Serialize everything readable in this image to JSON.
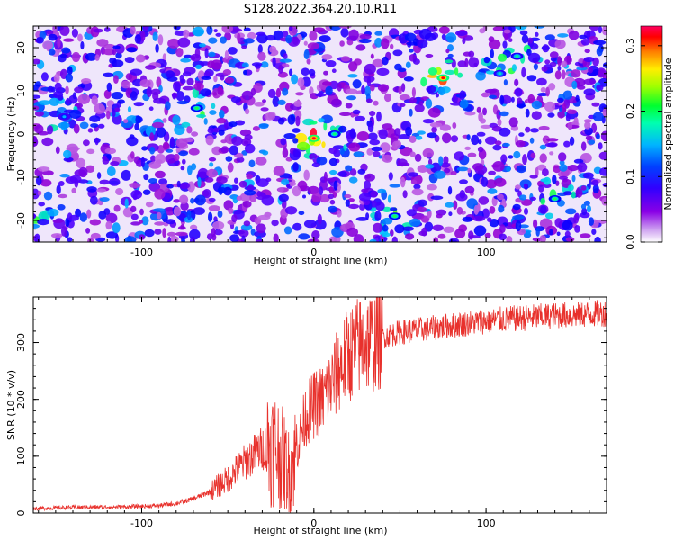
{
  "page": {
    "title": "S128.2022.364.20.10.R11"
  },
  "chart_data": [
    {
      "type": "heatmap",
      "title": "S128.2022.364.20.10.R11",
      "xlabel": "Height of straight line (km)",
      "ylabel": "Frequency (Hz)",
      "xlim": [
        -163,
        170
      ],
      "ylim": [
        -25,
        25
      ],
      "x_ticks": [
        -100,
        0,
        100
      ],
      "x_tick_labels": [
        "-100",
        "0",
        "100"
      ],
      "y_ticks": [
        -20,
        -10,
        0,
        10,
        20
      ],
      "y_tick_labels": [
        "-20",
        "-10",
        "0",
        "10",
        "20"
      ],
      "colorbar": {
        "label": "Normalized spectral amplitude",
        "range": [
          0.0,
          0.33
        ],
        "ticks": [
          0.0,
          0.1,
          0.2,
          0.3
        ],
        "tick_labels": [
          "0.0",
          "0.1",
          "0.2",
          "0.3"
        ],
        "colormap": [
          "#ffffff",
          "#9400d3",
          "#4b00ff",
          "#0000ff",
          "#00c0ff",
          "#00ff80",
          "#40ff00",
          "#ffff00",
          "#ff8000",
          "#ff0000",
          "#ff0080"
        ]
      },
      "hotspots": [
        {
          "x": 0,
          "y": -1,
          "value": 0.31
        },
        {
          "x": 75,
          "y": 13,
          "value": 0.3
        },
        {
          "x": -68,
          "y": 6,
          "value": 0.18
        },
        {
          "x": 12,
          "y": 0,
          "value": 0.17
        },
        {
          "x": 140,
          "y": -15,
          "value": 0.18
        },
        {
          "x": 108,
          "y": 14,
          "value": 0.15
        },
        {
          "x": 118,
          "y": 18,
          "value": 0.16
        },
        {
          "x": 47,
          "y": -19,
          "value": 0.18
        },
        {
          "x": -145,
          "y": 4,
          "value": 0.13
        },
        {
          "x": -165,
          "y": -19,
          "value": 0.12
        }
      ],
      "grid": false
    },
    {
      "type": "line",
      "xlabel": "Height of straight line (km)",
      "ylabel": "SNR (10 * v/v)",
      "xlim": [
        -163,
        170
      ],
      "ylim": [
        0,
        380
      ],
      "x_ticks": [
        -100,
        0,
        100
      ],
      "x_tick_labels": [
        "-100",
        "0",
        "100"
      ],
      "y_ticks": [
        0,
        100,
        200,
        300
      ],
      "y_tick_labels": [
        "0",
        "100",
        "200",
        "300"
      ],
      "series_color": "#e8312c",
      "envelope": {
        "x": [
          -163,
          -140,
          -110,
          -90,
          -80,
          -70,
          -60,
          -50,
          -40,
          -32,
          -27,
          -22,
          -18,
          -14,
          -10,
          -5,
          0,
          5,
          10,
          15,
          20,
          25,
          30,
          40,
          50,
          60,
          80,
          100,
          120,
          140,
          160,
          170
        ],
        "y": [
          8,
          10,
          11,
          13,
          17,
          25,
          38,
          60,
          90,
          110,
          120,
          115,
          95,
          70,
          110,
          170,
          190,
          200,
          225,
          255,
          278,
          292,
          300,
          310,
          318,
          322,
          330,
          338,
          343,
          347,
          350,
          352
        ]
      },
      "grid": false
    }
  ]
}
